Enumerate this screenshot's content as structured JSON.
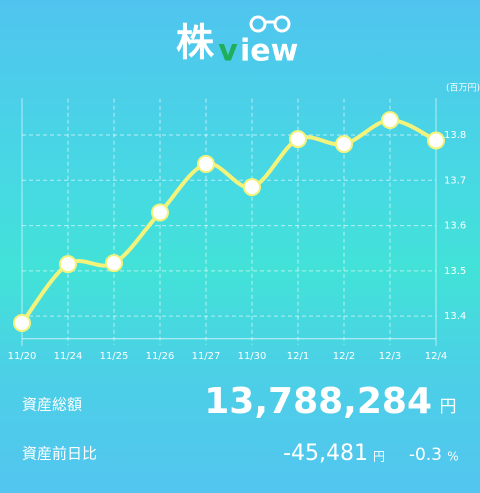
{
  "logo": {
    "kanji": "株",
    "v": "v",
    "rest": "iew"
  },
  "chart_data": {
    "type": "line",
    "unit": "(百万円)",
    "categories": [
      "11/20",
      "11/24",
      "11/25",
      "11/26",
      "11/27",
      "11/30",
      "12/1",
      "12/2",
      "12/3",
      "12/4"
    ],
    "values": [
      13.385,
      13.515,
      13.517,
      13.629,
      13.736,
      13.685,
      13.791,
      13.78,
      13.833,
      13.788
    ],
    "color": "#f3f37c",
    "ylim": [
      13.35,
      13.88
    ],
    "yticks": [
      13.4,
      13.5,
      13.6,
      13.7,
      13.8
    ],
    "grid": true,
    "y_axis_side": "right"
  },
  "summary": {
    "total_label": "資産総額",
    "total_value": "13,788,284",
    "total_unit": "円",
    "change_label": "資産前日比",
    "change_value": "-45,481",
    "change_unit": "円",
    "change_pct": "-0.3",
    "change_pct_unit": "%"
  }
}
